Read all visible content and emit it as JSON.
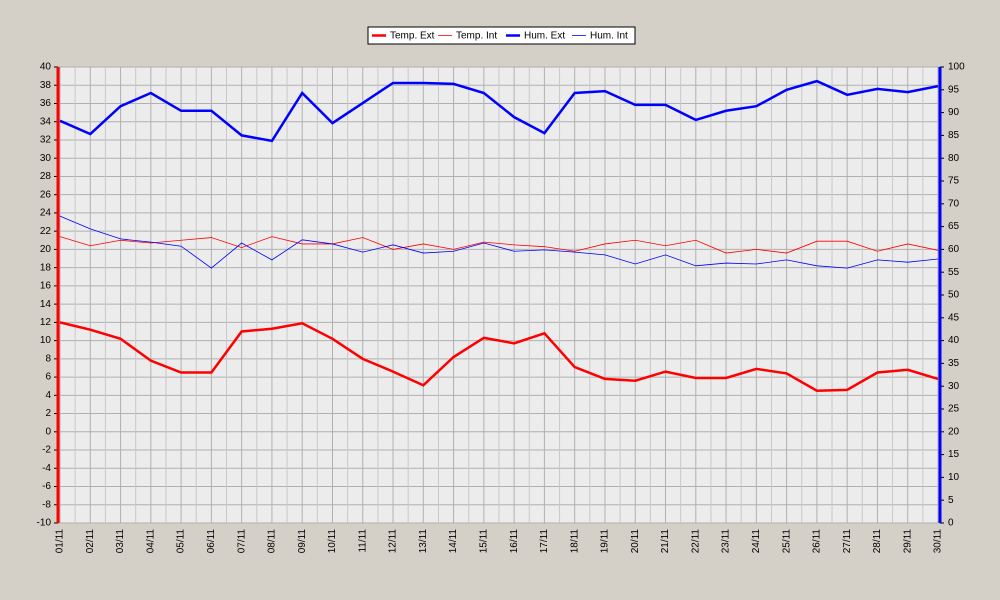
{
  "chart_data": {
    "type": "line",
    "categories": [
      "01/11",
      "02/11",
      "03/11",
      "04/11",
      "05/11",
      "06/11",
      "07/11",
      "08/11",
      "09/11",
      "10/11",
      "11/11",
      "12/11",
      "13/11",
      "14/11",
      "15/11",
      "16/11",
      "17/11",
      "18/11",
      "19/11",
      "20/11",
      "21/11",
      "22/11",
      "23/11",
      "24/11",
      "25/11",
      "26/11",
      "27/11",
      "28/11",
      "29/11",
      "30/11"
    ],
    "series": [
      {
        "name": "Temp. Ext",
        "color": "#ff0000",
        "width": 2.5,
        "values": [
          12,
          11.2,
          10.2,
          7.8,
          6.5,
          6.5,
          11,
          11.3,
          11.9,
          10.2,
          8,
          6.6,
          5.1,
          8.2,
          10.3,
          9.7,
          10.8,
          7.1,
          5.8,
          5.6,
          6.6,
          5.9,
          5.9,
          6.9,
          6.4,
          4.5,
          4.6,
          6.5,
          6.8,
          5.8
        ]
      },
      {
        "name": "Temp. Int",
        "color": "#ff0000",
        "width": 0.8,
        "values": [
          21.4,
          20.4,
          21,
          20.7,
          21,
          21.3,
          20.2,
          21.4,
          20.6,
          20.6,
          21.3,
          20,
          20.6,
          20,
          20.8,
          20.5,
          20.3,
          19.8,
          20.6,
          21,
          20.4,
          21,
          19.6,
          20,
          19.6,
          20.9,
          20.9,
          19.8,
          20.6,
          19.9
        ]
      },
      {
        "name": "Hum. Ext",
        "color": "#0000ff",
        "width": 2.5,
        "axis": "y2",
        "values": [
          88.2,
          85.3,
          91.4,
          94.3,
          90.4,
          90.4,
          85,
          83.8,
          94.3,
          87.7,
          92.1,
          96.5,
          96.5,
          96.3,
          94.3,
          89,
          85.5,
          94.3,
          94.7,
          91.7,
          91.7,
          88.4,
          90.4,
          91.4,
          95,
          96.9,
          93.9,
          95.2,
          94.5,
          95.8
        ]
      },
      {
        "name": "Hum. Int",
        "color": "#0000ff",
        "width": 0.8,
        "axis": "y2",
        "values": [
          67.3,
          64.5,
          62.3,
          61.6,
          60.7,
          55.9,
          61.4,
          57.7,
          62.1,
          61.2,
          59.4,
          61,
          59.2,
          59.6,
          61.4,
          59.6,
          59.9,
          59.4,
          58.8,
          56.8,
          58.8,
          56.4,
          57,
          56.8,
          57.7,
          56.4,
          55.9,
          57.7,
          57.2,
          57.9
        ]
      }
    ],
    "ylim": [
      -10,
      40
    ],
    "yticks": [
      -10,
      -8,
      -6,
      -4,
      -2,
      0,
      2,
      4,
      6,
      8,
      10,
      12,
      14,
      16,
      18,
      20,
      22,
      24,
      26,
      28,
      30,
      32,
      34,
      36,
      38,
      40
    ],
    "y2lim": [
      0,
      100
    ],
    "y2ticks": [
      0,
      5,
      10,
      15,
      20,
      25,
      30,
      35,
      40,
      45,
      50,
      55,
      60,
      65,
      70,
      75,
      80,
      85,
      90,
      95,
      100
    ],
    "grid": true,
    "legend": "top"
  }
}
